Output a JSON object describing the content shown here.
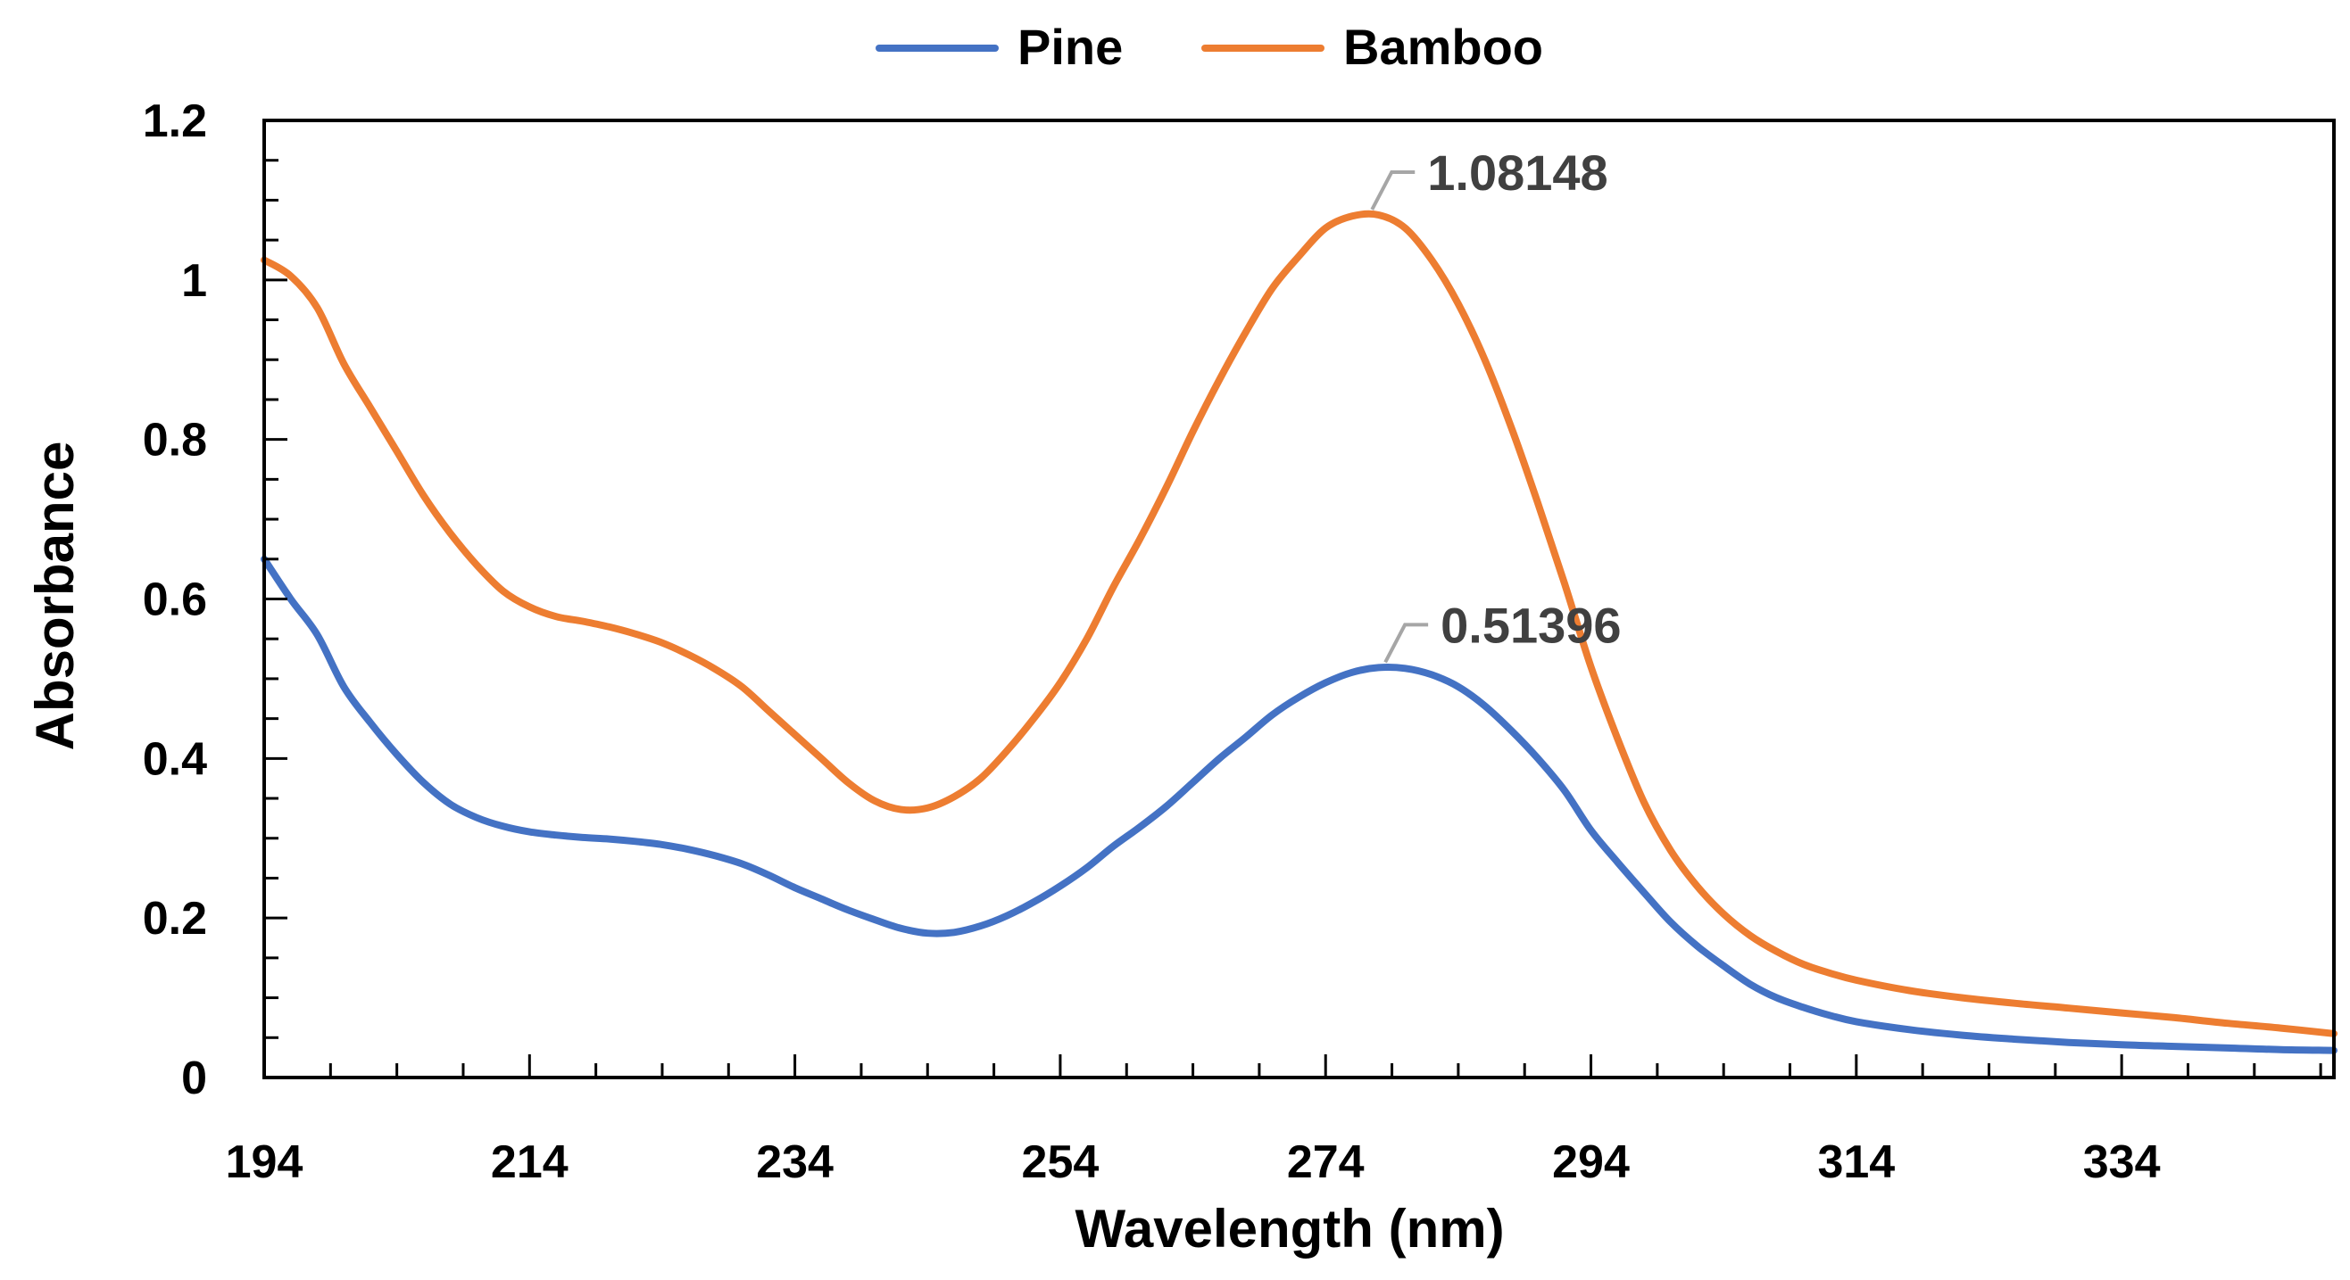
{
  "chart_data": {
    "type": "line",
    "title": "",
    "xlabel": "Wavelength (nm)",
    "ylabel": "Absorbance",
    "xlim": [
      194,
      350
    ],
    "ylim": [
      0,
      1.2
    ],
    "x_ticks": [
      194,
      214,
      234,
      254,
      274,
      294,
      314,
      334
    ],
    "y_ticks": [
      0,
      0.2,
      0.4,
      0.6,
      0.8,
      1,
      1.2
    ],
    "y_tick_labels": [
      "0",
      "0.2",
      "0.4",
      "0.6",
      "0.8",
      "1",
      "1.2"
    ],
    "grid": false,
    "legend_position": "top-center",
    "series": [
      {
        "name": "Pine",
        "color": "#4472C4",
        "x": [
          194,
          196,
          198,
          200,
          202,
          204,
          206,
          208,
          210,
          212,
          214,
          216,
          218,
          220,
          222,
          224,
          226,
          228,
          230,
          232,
          234,
          236,
          238,
          240,
          242,
          244,
          246,
          248,
          250,
          252,
          254,
          256,
          258,
          260,
          262,
          264,
          266,
          268,
          270,
          272,
          274,
          276,
          278,
          280,
          282,
          284,
          286,
          288,
          290,
          292,
          294,
          296,
          298,
          300,
          302,
          304,
          306,
          308,
          310,
          312,
          314,
          318,
          322,
          326,
          330,
          334,
          338,
          342,
          346,
          350
        ],
        "y": [
          0.65,
          0.6,
          0.555,
          0.49,
          0.445,
          0.405,
          0.37,
          0.343,
          0.326,
          0.315,
          0.308,
          0.304,
          0.301,
          0.299,
          0.296,
          0.292,
          0.286,
          0.278,
          0.268,
          0.254,
          0.238,
          0.224,
          0.21,
          0.198,
          0.187,
          0.181,
          0.182,
          0.19,
          0.203,
          0.22,
          0.24,
          0.263,
          0.29,
          0.314,
          0.34,
          0.37,
          0.4,
          0.427,
          0.455,
          0.477,
          0.495,
          0.508,
          0.514,
          0.513,
          0.505,
          0.49,
          0.466,
          0.435,
          0.4,
          0.36,
          0.31,
          0.27,
          0.232,
          0.195,
          0.165,
          0.14,
          0.117,
          0.1,
          0.088,
          0.078,
          0.07,
          0.06,
          0.053,
          0.048,
          0.044,
          0.041,
          0.039,
          0.037,
          0.035,
          0.034
        ]
      },
      {
        "name": "Bamboo",
        "color": "#ED7D31",
        "x": [
          194,
          196,
          198,
          200,
          202,
          204,
          206,
          208,
          210,
          212,
          214,
          216,
          218,
          220,
          222,
          224,
          226,
          228,
          230,
          232,
          234,
          236,
          238,
          240,
          242,
          244,
          246,
          248,
          250,
          252,
          254,
          256,
          258,
          260,
          262,
          264,
          266,
          268,
          270,
          272,
          274,
          276,
          278,
          280,
          282,
          284,
          286,
          288,
          290,
          292,
          294,
          296,
          298,
          300,
          302,
          304,
          306,
          308,
          310,
          312,
          314,
          318,
          322,
          326,
          330,
          334,
          338,
          342,
          346,
          350
        ],
        "y": [
          1.025,
          1.005,
          0.965,
          0.895,
          0.84,
          0.785,
          0.73,
          0.683,
          0.643,
          0.61,
          0.59,
          0.578,
          0.572,
          0.565,
          0.556,
          0.545,
          0.53,
          0.512,
          0.49,
          0.46,
          0.43,
          0.4,
          0.37,
          0.347,
          0.336,
          0.338,
          0.352,
          0.375,
          0.41,
          0.45,
          0.495,
          0.55,
          0.615,
          0.675,
          0.74,
          0.81,
          0.875,
          0.935,
          0.99,
          1.03,
          1.065,
          1.08,
          1.0815,
          1.065,
          1.025,
          0.97,
          0.9,
          0.815,
          0.72,
          0.62,
          0.515,
          0.425,
          0.345,
          0.285,
          0.24,
          0.205,
          0.178,
          0.158,
          0.142,
          0.131,
          0.122,
          0.109,
          0.1,
          0.093,
          0.087,
          0.081,
          0.075,
          0.068,
          0.062,
          0.055
        ]
      }
    ],
    "annotations": [
      {
        "series": "Bamboo",
        "x": 277.5,
        "y": 1.08148,
        "text": "1.08148"
      },
      {
        "series": "Pine",
        "x": 278.5,
        "y": 0.51396,
        "text": "0.51396"
      }
    ]
  }
}
